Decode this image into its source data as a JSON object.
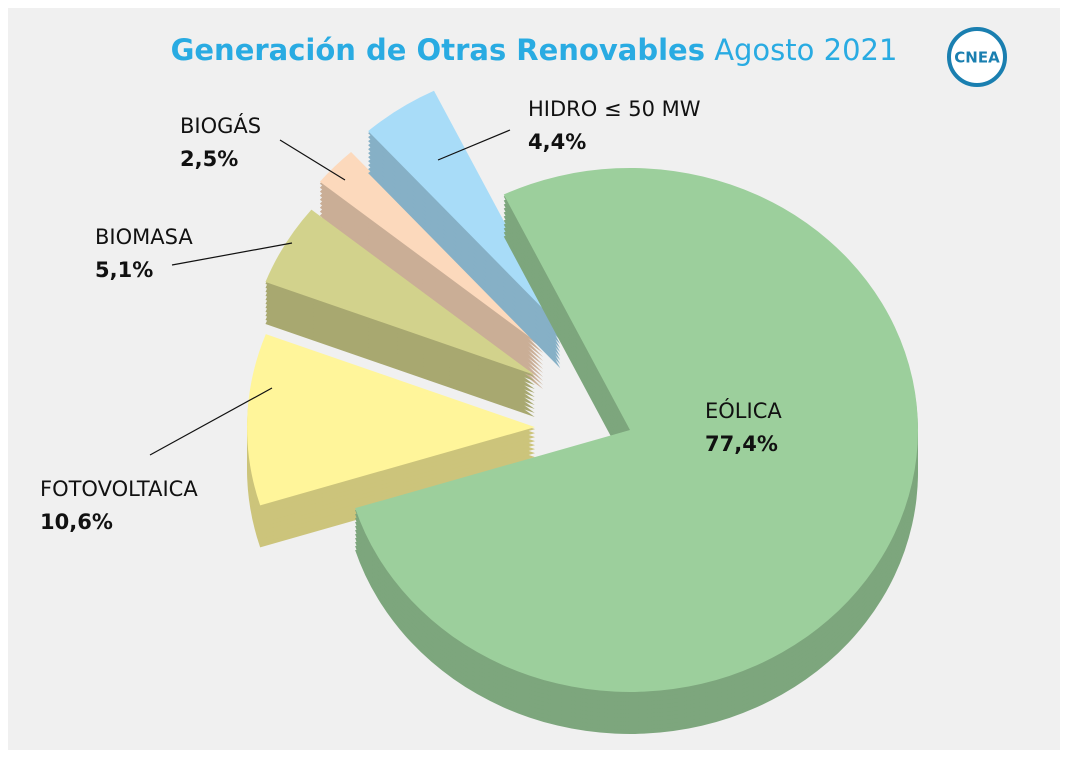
{
  "chart_data": {
    "type": "pie",
    "title": "Generación de Otras Renovables",
    "subtitle": "Agosto 2021",
    "logo_text": "CNEA",
    "categories": [
      "EÓLICA",
      "FOTOVOLTAICA",
      "BIOMASA",
      "BIOGÁS",
      "HIDRO ≤ 50 MW"
    ],
    "values": [
      77.4,
      10.6,
      5.1,
      2.5,
      4.4
    ],
    "value_labels": [
      "77,4%",
      "10,6%",
      "5,1%",
      "2,5%",
      "4,4%"
    ],
    "colors": [
      "#9ccf9c",
      "#fff59a",
      "#d2d28c",
      "#fcd9bc",
      "#a8dcf8"
    ]
  }
}
